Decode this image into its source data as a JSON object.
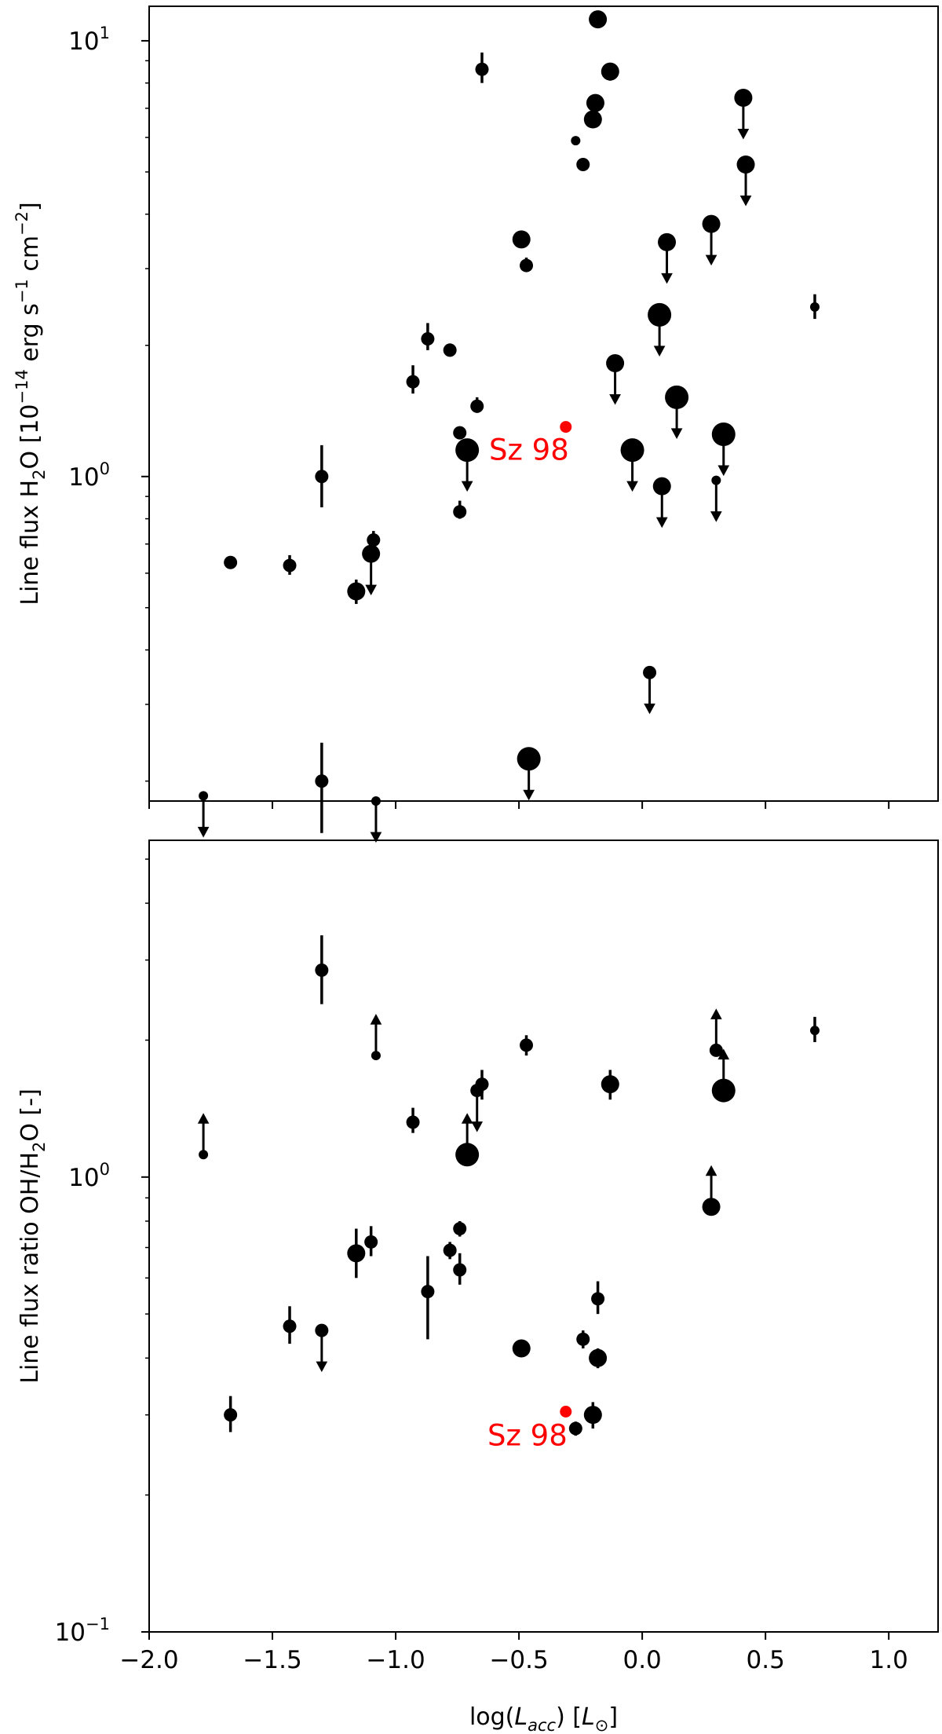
{
  "chart_data": [
    {
      "type": "scatter",
      "panel": "top",
      "xlabel": "",
      "ylabel": "Line flux H$_2$O [10$^{-14}$ erg s$^{-1}$ cm$^{-2}$]",
      "ylabel_parts": [
        "Line flux H",
        "2",
        "O [10",
        "−14",
        " erg s",
        "−1",
        " cm",
        "−2",
        "]"
      ],
      "xlim": [
        -2.0,
        1.2
      ],
      "ylim": [
        0.18,
        12.0
      ],
      "yscale": "log",
      "xticks": [
        -2.0,
        -1.5,
        -1.0,
        -0.5,
        0.0,
        0.5,
        1.0
      ],
      "yticks": [
        {
          "value": 1,
          "base": "10",
          "exp": "0"
        },
        {
          "value": 10,
          "base": "10",
          "exp": "1"
        }
      ],
      "show_x_tick_labels": false,
      "grid": false,
      "points": [
        {
          "x": -1.78,
          "y": 0.185,
          "size": "s",
          "limit": "upper"
        },
        {
          "x": -1.67,
          "y": 0.635,
          "size": "m"
        },
        {
          "x": -1.43,
          "y": 0.625,
          "size": "m",
          "err": [
            0.595,
            0.66
          ]
        },
        {
          "x": -1.3,
          "y": 1.0,
          "size": "m",
          "err": [
            0.85,
            1.18
          ]
        },
        {
          "x": -1.3,
          "y": 0.2,
          "size": "m",
          "err": [
            0.152,
            0.245
          ]
        },
        {
          "x": -1.16,
          "y": 0.545,
          "size": "l",
          "err": [
            0.51,
            0.58
          ]
        },
        {
          "x": -1.1,
          "y": 0.665,
          "size": "l",
          "limit": "upper"
        },
        {
          "x": -1.09,
          "y": 0.715,
          "size": "m",
          "err": [
            0.685,
            0.75
          ]
        },
        {
          "x": -1.08,
          "y": 0.18,
          "size": "s",
          "limit": "upper"
        },
        {
          "x": -0.93,
          "y": 1.65,
          "size": "m",
          "err": [
            1.55,
            1.8
          ]
        },
        {
          "x": -0.87,
          "y": 2.07,
          "size": "m",
          "err": [
            1.95,
            2.25
          ]
        },
        {
          "x": -0.78,
          "y": 1.95,
          "size": "m",
          "err": [
            1.9,
            2.02
          ]
        },
        {
          "x": -0.74,
          "y": 1.26,
          "size": "m"
        },
        {
          "x": -0.74,
          "y": 0.83,
          "size": "m",
          "err": [
            0.8,
            0.88
          ]
        },
        {
          "x": -0.71,
          "y": 1.15,
          "size": "xl",
          "limit": "upper"
        },
        {
          "x": -0.67,
          "y": 1.45,
          "size": "m",
          "err": [
            1.4,
            1.52
          ]
        },
        {
          "x": -0.65,
          "y": 8.6,
          "size": "m",
          "err": [
            8.0,
            9.4
          ]
        },
        {
          "x": -0.49,
          "y": 3.5,
          "size": "l"
        },
        {
          "x": -0.47,
          "y": 3.05,
          "size": "m",
          "err": [
            2.95,
            3.18
          ]
        },
        {
          "x": -0.46,
          "y": 0.225,
          "size": "xl",
          "limit": "upper"
        },
        {
          "x": -0.27,
          "y": 5.9,
          "size": "s"
        },
        {
          "x": -0.24,
          "y": 5.2,
          "size": "m"
        },
        {
          "x": -0.2,
          "y": 6.6,
          "size": "l"
        },
        {
          "x": -0.19,
          "y": 7.2,
          "size": "l"
        },
        {
          "x": -0.18,
          "y": 11.2,
          "size": "l",
          "err": [
            10.9,
            11.6
          ]
        },
        {
          "x": -0.13,
          "y": 8.5,
          "size": "l",
          "err": [
            8.1,
            8.9
          ]
        },
        {
          "x": -0.11,
          "y": 1.82,
          "size": "l",
          "limit": "upper"
        },
        {
          "x": -0.04,
          "y": 1.15,
          "size": "xl",
          "limit": "upper"
        },
        {
          "x": 0.03,
          "y": 0.355,
          "size": "m",
          "limit": "upper"
        },
        {
          "x": 0.07,
          "y": 2.35,
          "size": "xl",
          "limit": "upper"
        },
        {
          "x": 0.08,
          "y": 0.95,
          "size": "l",
          "limit": "upper"
        },
        {
          "x": 0.1,
          "y": 3.45,
          "size": "l",
          "limit": "upper"
        },
        {
          "x": 0.14,
          "y": 1.52,
          "size": "xl",
          "limit": "upper"
        },
        {
          "x": 0.28,
          "y": 3.8,
          "size": "l",
          "limit": "upper"
        },
        {
          "x": 0.3,
          "y": 0.98,
          "size": "s",
          "limit": "upper"
        },
        {
          "x": 0.33,
          "y": 1.25,
          "size": "xl",
          "limit": "upper"
        },
        {
          "x": 0.41,
          "y": 7.4,
          "size": "l",
          "limit": "upper"
        },
        {
          "x": 0.42,
          "y": 5.2,
          "size": "l",
          "limit": "upper"
        },
        {
          "x": 0.7,
          "y": 2.45,
          "size": "s",
          "err": [
            2.3,
            2.62
          ]
        }
      ],
      "highlight": {
        "label": "Sz 98",
        "x": -0.31,
        "y": 1.3,
        "color": "#ff0000",
        "label_anchor": "left"
      }
    },
    {
      "type": "scatter",
      "panel": "bottom",
      "xlabel": "log($L_{acc}$) [$L_{\\odot}$]",
      "xlabel_parts": [
        "log(",
        "L",
        "acc",
        ") [",
        "L",
        "⊙",
        "]"
      ],
      "ylabel": "Line flux ratio OH/H$_2$O [-]",
      "ylabel_parts": [
        "Line flux ratio OH/H",
        "2",
        "O [-]"
      ],
      "xlim": [
        -2.0,
        1.2
      ],
      "ylim": [
        0.1,
        5.5
      ],
      "yscale": "log",
      "xticks": [
        -2.0,
        -1.5,
        -1.0,
        -0.5,
        0.0,
        0.5,
        1.0
      ],
      "xtick_labels": [
        "−2.0",
        "−1.5",
        "−1.0",
        "−0.5",
        "0.0",
        "0.5",
        "1.0"
      ],
      "yticks": [
        {
          "value": 0.1,
          "base": "10",
          "exp": "−1"
        },
        {
          "value": 1,
          "base": "10",
          "exp": "0"
        }
      ],
      "grid": false,
      "points": [
        {
          "x": -1.78,
          "y": 1.12,
          "size": "s",
          "limit": "lower"
        },
        {
          "x": -1.67,
          "y": 0.3,
          "size": "m",
          "err": [
            0.275,
            0.33
          ]
        },
        {
          "x": -1.43,
          "y": 0.47,
          "size": "m",
          "err": [
            0.43,
            0.52
          ]
        },
        {
          "x": -1.3,
          "y": 2.85,
          "size": "m",
          "err": [
            2.4,
            3.4
          ]
        },
        {
          "x": -1.3,
          "y": 0.46,
          "size": "m",
          "limit": "upper"
        },
        {
          "x": -1.16,
          "y": 0.68,
          "size": "l",
          "err": [
            0.6,
            0.77
          ]
        },
        {
          "x": -1.1,
          "y": 0.72,
          "size": "m",
          "err": [
            0.67,
            0.78
          ]
        },
        {
          "x": -1.08,
          "y": 1.85,
          "size": "s",
          "limit": "lower"
        },
        {
          "x": -0.93,
          "y": 1.32,
          "size": "m",
          "err": [
            1.25,
            1.42
          ]
        },
        {
          "x": -0.87,
          "y": 0.56,
          "size": "m",
          "err": [
            0.44,
            0.67
          ]
        },
        {
          "x": -0.78,
          "y": 0.69,
          "size": "m",
          "err": [
            0.66,
            0.72
          ]
        },
        {
          "x": -0.74,
          "y": 0.77,
          "size": "m",
          "err": [
            0.74,
            0.8
          ]
        },
        {
          "x": -0.74,
          "y": 0.625,
          "size": "m",
          "err": [
            0.58,
            0.68
          ]
        },
        {
          "x": -0.71,
          "y": 1.12,
          "size": "xl",
          "limit": "lower"
        },
        {
          "x": -0.67,
          "y": 1.55,
          "size": "m",
          "limit": "upper"
        },
        {
          "x": -0.65,
          "y": 1.6,
          "size": "m",
          "err": [
            1.48,
            1.72
          ]
        },
        {
          "x": -0.49,
          "y": 0.42,
          "size": "l",
          "err": [
            0.405,
            0.435
          ]
        },
        {
          "x": -0.47,
          "y": 1.95,
          "size": "m",
          "err": [
            1.85,
            2.05
          ]
        },
        {
          "x": -0.27,
          "y": 0.28,
          "size": "m",
          "err": [
            0.27,
            0.29
          ]
        },
        {
          "x": -0.24,
          "y": 0.44,
          "size": "m",
          "err": [
            0.42,
            0.46
          ]
        },
        {
          "x": -0.2,
          "y": 0.3,
          "size": "l",
          "err": [
            0.28,
            0.32
          ]
        },
        {
          "x": -0.18,
          "y": 0.4,
          "size": "l",
          "err": [
            0.38,
            0.42
          ]
        },
        {
          "x": -0.18,
          "y": 0.54,
          "size": "m",
          "err": [
            0.5,
            0.59
          ]
        },
        {
          "x": -0.13,
          "y": 1.6,
          "size": "l",
          "err": [
            1.48,
            1.72
          ]
        },
        {
          "x": 0.28,
          "y": 0.86,
          "size": "l",
          "limit": "lower"
        },
        {
          "x": 0.3,
          "y": 1.9,
          "size": "m",
          "limit": "lower"
        },
        {
          "x": 0.33,
          "y": 1.55,
          "size": "xl",
          "limit": "lower"
        },
        {
          "x": 0.7,
          "y": 2.1,
          "size": "s",
          "err": [
            1.98,
            2.25
          ]
        }
      ],
      "highlight": {
        "label": "Sz 98",
        "x": -0.31,
        "y": 0.305,
        "color": "#ff0000",
        "label_anchor": "below-left"
      }
    }
  ]
}
